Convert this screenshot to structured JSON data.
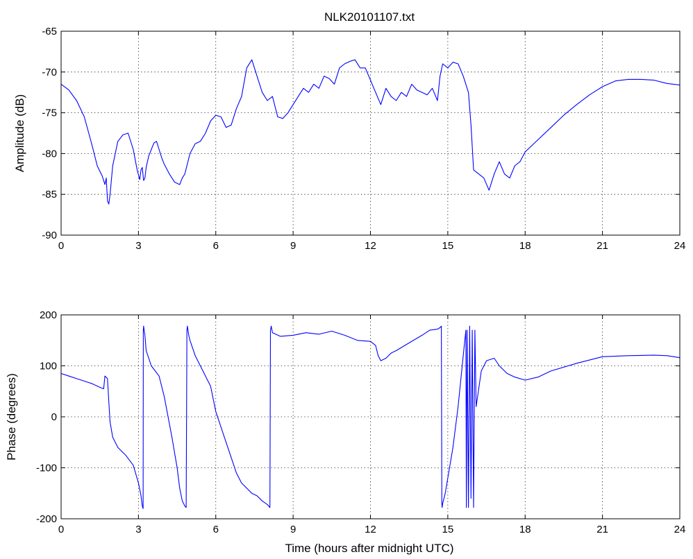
{
  "figure_title": "NLK20101107.txt",
  "colors": {
    "line": "#0000ff",
    "axes": "#000000",
    "background": "#ffffff"
  },
  "chart_data": [
    {
      "type": "line",
      "title": "NLK20101107.txt",
      "xlabel": "",
      "ylabel": "Amplitude (dB)",
      "xlim": [
        0,
        24
      ],
      "ylim": [
        -90,
        -65
      ],
      "xticks": [
        0,
        3,
        6,
        9,
        12,
        15,
        18,
        21,
        24
      ],
      "yticks": [
        -90,
        -85,
        -80,
        -75,
        -70,
        -65
      ],
      "grid": true,
      "series": [
        {
          "x": [
            0,
            0.3,
            0.6,
            0.9,
            1.2,
            1.4,
            1.6,
            1.7,
            1.75,
            1.8,
            1.85,
            1.9,
            2.0,
            2.2,
            2.4,
            2.6,
            2.8,
            2.95,
            3.05,
            3.1,
            3.15,
            3.2,
            3.25,
            3.3,
            3.4,
            3.5,
            3.6,
            3.7,
            3.8,
            3.9,
            4.0,
            4.2,
            4.4,
            4.6,
            4.7,
            4.8,
            5.0,
            5.2,
            5.4,
            5.6,
            5.8,
            6.0,
            6.2,
            6.4,
            6.6,
            6.8,
            7.0,
            7.2,
            7.4,
            7.6,
            7.8,
            8.0,
            8.2,
            8.4,
            8.6,
            8.8,
            9.0,
            9.2,
            9.4,
            9.6,
            9.8,
            10.0,
            10.2,
            10.4,
            10.6,
            10.8,
            11.0,
            11.2,
            11.4,
            11.6,
            11.8,
            12.0,
            12.2,
            12.4,
            12.6,
            12.8,
            13.0,
            13.2,
            13.4,
            13.6,
            13.8,
            14.0,
            14.2,
            14.4,
            14.6,
            14.7,
            14.8,
            15.0,
            15.2,
            15.4,
            15.6,
            15.8,
            15.9,
            16.0,
            16.2,
            16.4,
            16.6,
            16.8,
            17.0,
            17.2,
            17.4,
            17.6,
            17.8,
            18.0,
            18.5,
            19.0,
            19.5,
            20.0,
            20.5,
            21.0,
            21.5,
            22.0,
            22.5,
            23.0,
            23.5,
            24.0
          ],
          "y": [
            -71.5,
            -72.2,
            -73.5,
            -75.5,
            -79.0,
            -81.5,
            -82.8,
            -83.8,
            -83.0,
            -85.8,
            -86.2,
            -85.0,
            -81.5,
            -78.5,
            -77.7,
            -77.5,
            -79.5,
            -82.0,
            -83.2,
            -82.0,
            -81.7,
            -83.3,
            -83.0,
            -81.7,
            -80.3,
            -79.5,
            -78.7,
            -78.5,
            -79.5,
            -80.5,
            -81.3,
            -82.5,
            -83.5,
            -83.8,
            -83.0,
            -82.5,
            -80.0,
            -78.8,
            -78.5,
            -77.5,
            -76.0,
            -75.3,
            -75.5,
            -76.8,
            -76.5,
            -74.5,
            -73.0,
            -69.5,
            -68.5,
            -70.5,
            -72.5,
            -73.5,
            -73.0,
            -75.5,
            -75.7,
            -75.0,
            -74.0,
            -73.0,
            -72.0,
            -72.5,
            -71.5,
            -72.0,
            -70.5,
            -70.8,
            -71.5,
            -69.5,
            -69.0,
            -68.7,
            -68.5,
            -69.5,
            -69.5,
            -71.0,
            -72.5,
            -74.0,
            -72.0,
            -73.0,
            -73.5,
            -72.5,
            -73.0,
            -71.5,
            -72.2,
            -72.5,
            -72.8,
            -72.0,
            -73.5,
            -70.5,
            -69.0,
            -69.5,
            -68.8,
            -69.0,
            -70.5,
            -72.5,
            -76.5,
            -82.0,
            -82.5,
            -83.0,
            -84.5,
            -82.5,
            -81.0,
            -82.5,
            -83.0,
            -81.5,
            -81.0,
            -79.8,
            -78.3,
            -76.8,
            -75.3,
            -74.0,
            -72.8,
            -71.8,
            -71.1,
            -70.9,
            -70.9,
            -71.0,
            -71.4,
            -71.6
          ]
        }
      ]
    },
    {
      "type": "line",
      "title": "",
      "xlabel": "Time (hours after midnight UTC)",
      "ylabel": "Phase (degrees)",
      "xlim": [
        0,
        24
      ],
      "ylim": [
        -200,
        200
      ],
      "xticks": [
        0,
        3,
        6,
        9,
        12,
        15,
        18,
        21,
        24
      ],
      "yticks": [
        -200,
        -100,
        0,
        100,
        200
      ],
      "grid": true,
      "series": [
        {
          "x": [
            0,
            0.3,
            0.6,
            0.9,
            1.2,
            1.5,
            1.65,
            1.7,
            1.8,
            1.85,
            1.9,
            2.0,
            2.2,
            2.5,
            2.8,
            3.0,
            3.1,
            3.15,
            3.18,
            3.19,
            3.2,
            3.25,
            3.3,
            3.5,
            3.8,
            4.0,
            4.3,
            4.5,
            4.6,
            4.7,
            4.8,
            4.85,
            4.88,
            4.9,
            4.95,
            5.0,
            5.2,
            5.5,
            5.8,
            6.0,
            6.2,
            6.4,
            6.6,
            6.8,
            7.0,
            7.2,
            7.4,
            7.6,
            7.8,
            8.0,
            8.1,
            8.12,
            8.15,
            8.2,
            8.5,
            9.0,
            9.5,
            10.0,
            10.5,
            11.0,
            11.5,
            12.0,
            12.2,
            12.3,
            12.4,
            12.6,
            12.8,
            13.0,
            13.5,
            14.0,
            14.3,
            14.6,
            14.7,
            14.75,
            14.77,
            14.78,
            14.8,
            14.9,
            15.0,
            15.2,
            15.4,
            15.6,
            15.7,
            15.72,
            15.75,
            15.8,
            15.85,
            15.9,
            15.95,
            16.0,
            16.05,
            16.1,
            16.3,
            16.5,
            16.8,
            17.0,
            17.3,
            17.6,
            18.0,
            18.5,
            19.0,
            20.0,
            21.0,
            22.0,
            23.0,
            23.5,
            24.0
          ],
          "y": [
            85,
            80,
            75,
            70,
            65,
            58,
            55,
            80,
            75,
            30,
            -10,
            -40,
            -60,
            -75,
            -95,
            -130,
            -155,
            -175,
            -180,
            170,
            178,
            160,
            130,
            100,
            80,
            40,
            -40,
            -100,
            -140,
            -165,
            -175,
            -178,
            170,
            178,
            160,
            150,
            120,
            90,
            60,
            10,
            -20,
            -50,
            -80,
            -110,
            -130,
            -140,
            -150,
            -155,
            -165,
            -172,
            -178,
            170,
            178,
            165,
            158,
            160,
            165,
            162,
            168,
            160,
            150,
            148,
            140,
            120,
            110,
            115,
            125,
            130,
            145,
            160,
            170,
            172,
            175,
            178,
            -170,
            -178,
            -170,
            -150,
            -120,
            -60,
            20,
            120,
            170,
            -178,
            170,
            -178,
            178,
            -160,
            170,
            -178,
            170,
            20,
            90,
            110,
            115,
            100,
            85,
            78,
            72,
            78,
            90,
            105,
            118,
            120,
            121,
            120,
            116
          ]
        }
      ]
    }
  ]
}
